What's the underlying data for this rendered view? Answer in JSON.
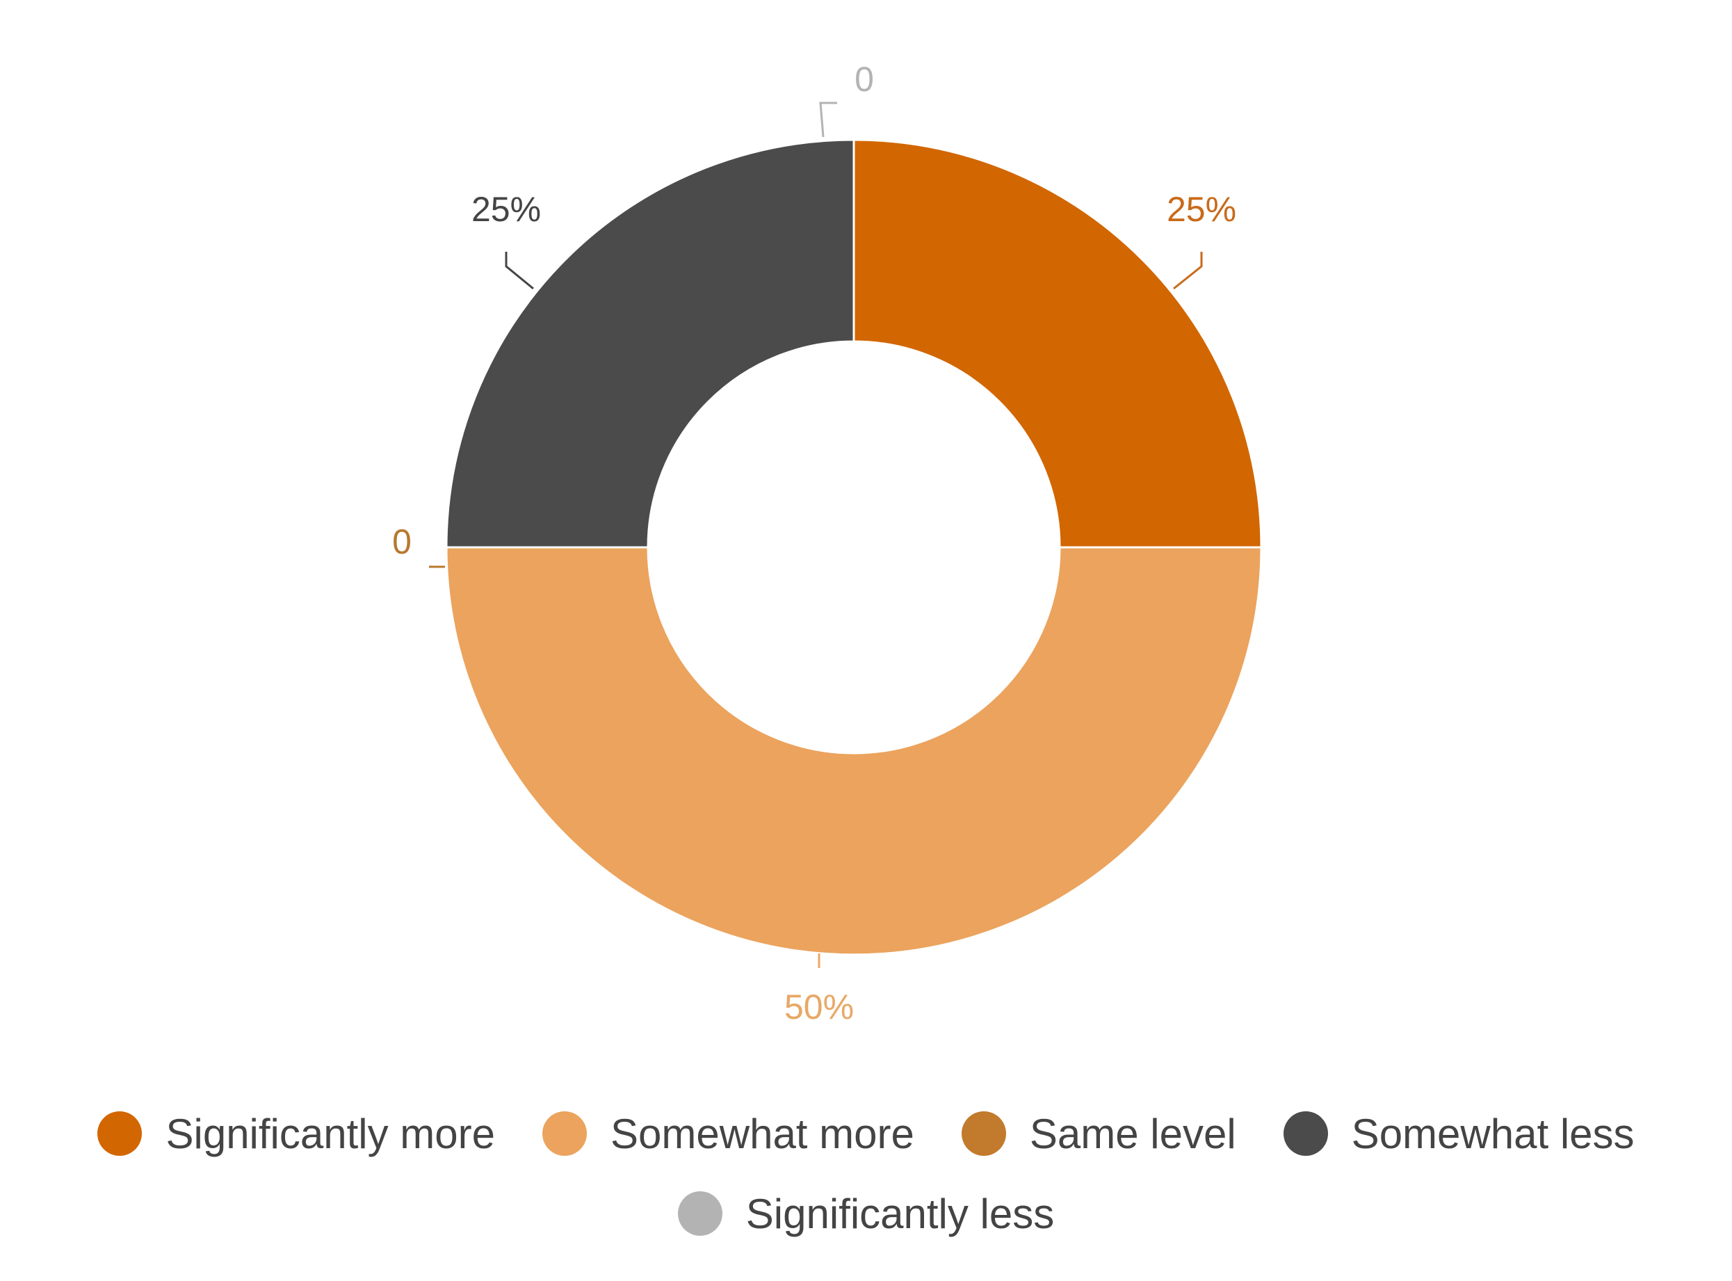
{
  "chart_data": {
    "type": "pie",
    "variant": "donut",
    "title": "",
    "categories": [
      "Significantly more",
      "Somewhat more",
      "Same level",
      "Somewhat less",
      "Significantly less"
    ],
    "values": [
      25,
      50,
      0,
      25,
      0
    ],
    "data_labels": [
      "25%",
      "50%",
      "0",
      "25%",
      "0"
    ],
    "colors": [
      "#d26600",
      "#eba35d",
      "#c27a2c",
      "#4b4b4b",
      "#b3b3b3"
    ],
    "label_colors": [
      "#c86a1a",
      "#e8a866",
      "#b8782e",
      "#444444",
      "#b3b3b3"
    ],
    "legend": {
      "position": "bottom",
      "items": [
        {
          "label": "Significantly more",
          "color": "#d26600"
        },
        {
          "label": "Somewhat more",
          "color": "#eba35d"
        },
        {
          "label": "Same level",
          "color": "#c27a2c"
        },
        {
          "label": "Somewhat less",
          "color": "#4b4b4b"
        },
        {
          "label": "Significantly less",
          "color": "#b3b3b3"
        }
      ]
    }
  }
}
